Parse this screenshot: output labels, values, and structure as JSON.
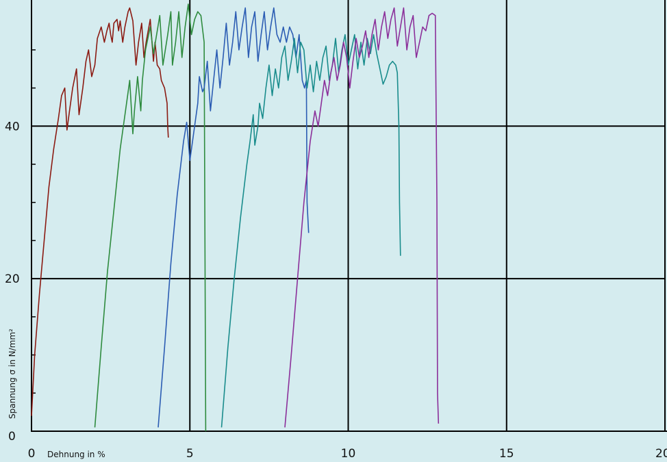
{
  "chart_data": {
    "type": "line",
    "xlabel": "Dehnung in %",
    "ylabel": "Spannung σ in N/mm²",
    "xlim": [
      0,
      20
    ],
    "ylim": [
      0,
      56
    ],
    "x_ticks": [
      0,
      5,
      10,
      15,
      20
    ],
    "x_tick_labels": [
      "0",
      "5",
      "10",
      "15",
      "20"
    ],
    "y_ticks": [
      0,
      20,
      40
    ],
    "y_tick_labels": [
      "0",
      "20",
      "40"
    ],
    "y_minor_ticks": [
      5,
      10,
      15,
      25,
      30,
      35,
      45,
      50
    ],
    "grid": true,
    "legend": false,
    "series": [
      {
        "color": "#8b1a12",
        "x": [
          0.0,
          0.1,
          0.25,
          0.4,
          0.55,
          0.7,
          0.85,
          0.95,
          1.05,
          1.12,
          1.2,
          1.3,
          1.42,
          1.5,
          1.62,
          1.72,
          1.8,
          1.9,
          2.0,
          2.08,
          2.2,
          2.3,
          2.38,
          2.45,
          2.5,
          2.55,
          2.6,
          2.7,
          2.75,
          2.8,
          2.88,
          2.95,
          3.05,
          3.1,
          3.2,
          3.3,
          3.38,
          3.48,
          3.55,
          3.62,
          3.75,
          3.85,
          3.9,
          3.97,
          4.05,
          4.1,
          4.15,
          4.2,
          4.28,
          4.3,
          4.32
        ],
        "y": [
          2,
          10,
          18,
          25,
          32,
          37,
          41,
          44,
          45,
          39.5,
          42,
          45,
          47.5,
          41.5,
          45,
          48.5,
          50,
          46.5,
          48,
          51.5,
          53,
          51,
          52.5,
          53.5,
          52,
          51,
          53.5,
          54,
          52.5,
          53.8,
          51,
          53,
          55,
          55.5,
          53.8,
          48,
          51,
          53.5,
          49,
          51,
          54,
          48.5,
          51,
          48,
          47.5,
          46,
          45.5,
          45,
          43,
          40,
          38.5
        ]
      },
      {
        "color": "#2e8b3e",
        "x": [
          2.0,
          2.2,
          2.4,
          2.6,
          2.8,
          3.0,
          3.1,
          3.2,
          3.25,
          3.35,
          3.45,
          3.5,
          3.6,
          3.75,
          3.85,
          3.95,
          4.05,
          4.15,
          4.3,
          4.4,
          4.45,
          4.55,
          4.65,
          4.75,
          4.85,
          4.95,
          5.05,
          5.15,
          5.25,
          5.35,
          5.45,
          5.48,
          5.5
        ],
        "y": [
          0.5,
          11,
          21,
          29,
          37,
          43,
          46,
          39,
          42,
          46.5,
          42,
          46,
          50,
          53,
          49.5,
          52,
          54.5,
          48,
          52,
          55,
          48,
          51,
          55,
          49,
          53,
          56,
          52,
          54,
          55,
          54.5,
          51,
          20,
          0
        ]
      },
      {
        "color": "#2b5cb3",
        "x": [
          4.0,
          4.2,
          4.4,
          4.6,
          4.8,
          4.9,
          5.0,
          5.05,
          5.15,
          5.25,
          5.3,
          5.4,
          5.45,
          5.55,
          5.65,
          5.75,
          5.85,
          5.95,
          6.05,
          6.15,
          6.25,
          6.35,
          6.45,
          6.55,
          6.65,
          6.75,
          6.85,
          6.95,
          7.05,
          7.15,
          7.25,
          7.35,
          7.45,
          7.55,
          7.65,
          7.75,
          7.85,
          7.95,
          8.05,
          8.15,
          8.25,
          8.35,
          8.45,
          8.55,
          8.62,
          8.68,
          8.7,
          8.75
        ],
        "y": [
          0.5,
          11,
          22,
          31,
          38,
          40.5,
          35.5,
          37,
          40,
          43,
          46.5,
          44.5,
          45,
          48.5,
          42,
          46,
          50,
          45,
          49,
          53.5,
          48,
          51,
          55,
          50,
          53,
          55.5,
          49,
          53,
          55,
          48.5,
          52,
          55,
          50,
          53,
          55.5,
          52,
          51,
          53,
          51,
          53,
          52,
          49,
          52,
          46,
          45,
          46,
          30,
          26
        ]
      },
      {
        "color": "#198c8c",
        "x": [
          6.0,
          6.2,
          6.4,
          6.6,
          6.8,
          6.9,
          7.0,
          7.05,
          7.15,
          7.2,
          7.3,
          7.4,
          7.5,
          7.6,
          7.7,
          7.8,
          7.9,
          8.0,
          8.1,
          8.2,
          8.3,
          8.4,
          8.5,
          8.6,
          8.7,
          8.8,
          8.9,
          9.0,
          9.1,
          9.2,
          9.3,
          9.4,
          9.5,
          9.6,
          9.7,
          9.8,
          9.9,
          10.0,
          10.1,
          10.2,
          10.3,
          10.4,
          10.5,
          10.6,
          10.7,
          10.8,
          10.9,
          11.0,
          11.1,
          11.2,
          11.3,
          11.4,
          11.5,
          11.55,
          11.6,
          11.62,
          11.65
        ],
        "y": [
          0.5,
          11,
          20,
          28,
          35,
          38,
          41.5,
          37.5,
          40,
          43,
          41,
          45,
          48,
          44,
          47.5,
          45,
          49,
          50.5,
          46,
          48.5,
          51.5,
          47,
          51,
          50,
          45,
          48,
          44.5,
          48.5,
          46,
          49,
          50.5,
          46,
          48,
          51.5,
          47,
          50,
          52,
          48,
          50,
          52,
          47.5,
          51,
          48,
          51.5,
          49.5,
          52,
          49.5,
          47.5,
          45.5,
          46.5,
          48,
          48.5,
          48,
          47,
          40,
          30,
          23
        ]
      },
      {
        "color": "#8b2f9a",
        "x": [
          8.0,
          8.2,
          8.4,
          8.6,
          8.8,
          8.95,
          9.05,
          9.15,
          9.25,
          9.35,
          9.45,
          9.55,
          9.65,
          9.75,
          9.85,
          9.95,
          10.05,
          10.15,
          10.25,
          10.35,
          10.45,
          10.55,
          10.65,
          10.75,
          10.85,
          10.95,
          11.05,
          11.15,
          11.25,
          11.35,
          11.45,
          11.55,
          11.65,
          11.75,
          11.85,
          11.95,
          12.05,
          12.15,
          12.25,
          12.35,
          12.45,
          12.55,
          12.65,
          12.75,
          12.8,
          12.82,
          12.85
        ],
        "y": [
          0.5,
          10,
          20,
          30,
          38,
          42,
          40,
          43,
          46,
          44,
          47,
          49,
          46,
          48,
          51,
          49,
          45,
          48.5,
          51.5,
          49,
          50.5,
          52.5,
          49,
          52,
          54,
          50,
          53,
          55,
          51.5,
          54,
          55.5,
          50.5,
          53,
          55.5,
          50,
          53,
          54.5,
          49,
          51,
          53,
          52.5,
          54.5,
          54.8,
          54.5,
          30,
          5,
          1
        ]
      }
    ]
  }
}
